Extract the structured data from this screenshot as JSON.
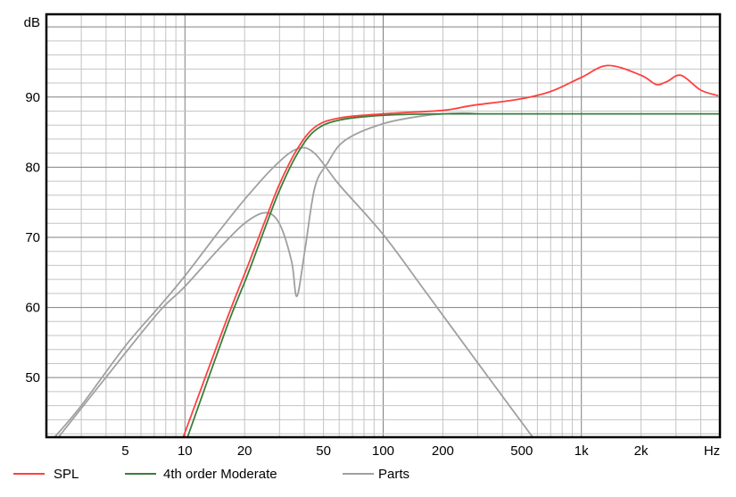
{
  "chart_data": {
    "type": "line",
    "xscale": "log",
    "xlim": [
      2,
      5000
    ],
    "ylim": [
      41.5,
      101.8
    ],
    "xlabel": "Hz",
    "ylabel": "dB",
    "grid": true,
    "legend_placement": "bottom",
    "x_tick_values": [
      5,
      10,
      20,
      50,
      100,
      200,
      500,
      1000,
      2000
    ],
    "x_tick_labels": [
      "5",
      "10",
      "20",
      "50",
      "100",
      "200",
      "500",
      "1k",
      "2k"
    ],
    "y_ticks": [
      50,
      60,
      70,
      80,
      90
    ],
    "series": [
      {
        "name": "Parts",
        "color": "#a0a0a0",
        "points": [
          [
            2.2,
            41.5
          ],
          [
            3,
            46
          ],
          [
            5,
            54.5
          ],
          [
            7.57,
            60.4
          ],
          [
            10,
            64.5
          ],
          [
            15,
            71
          ],
          [
            20,
            75.4
          ],
          [
            28,
            80
          ],
          [
            36.7,
            82.6
          ],
          [
            45,
            82
          ],
          [
            60,
            77.5
          ],
          [
            100,
            70.4
          ],
          [
            167,
            61.9
          ],
          [
            300,
            52.1
          ],
          [
            600,
            40.6
          ]
        ]
      },
      {
        "name": "Parts",
        "color": "#a0a0a0",
        "points": [
          [
            2.3,
            41.5
          ],
          [
            5,
            53.5
          ],
          [
            7.57,
            59.7
          ],
          [
            10,
            63
          ],
          [
            15,
            68.5
          ],
          [
            20,
            72
          ],
          [
            25.4,
            73.5
          ],
          [
            29.9,
            72
          ],
          [
            34.5,
            66.6
          ],
          [
            36.7,
            61.6
          ],
          [
            40.3,
            68.2
          ],
          [
            45.2,
            77.1
          ],
          [
            52.2,
            80.5
          ],
          [
            64,
            83.8
          ],
          [
            100,
            86.2
          ],
          [
            167,
            87.4
          ],
          [
            250,
            87.7
          ],
          [
            300,
            87.6
          ]
        ]
      },
      {
        "name": "4th order Moderate",
        "color": "#3a7d3a",
        "points": [
          [
            10.3,
            41.5
          ],
          [
            16.3,
            57.3
          ],
          [
            20.6,
            64.5
          ],
          [
            25.4,
            71.4
          ],
          [
            29.9,
            76.6
          ],
          [
            36.7,
            81.8
          ],
          [
            45.2,
            85.2
          ],
          [
            59.7,
            86.7
          ],
          [
            100,
            87.4
          ],
          [
            200,
            87.6
          ],
          [
            300,
            87.6
          ],
          [
            5000,
            87.6
          ]
        ]
      },
      {
        "name": "SPL",
        "color": "#ff4040",
        "points": [
          [
            9.8,
            41.5
          ],
          [
            16.3,
            58.4
          ],
          [
            20.6,
            65.7
          ],
          [
            25.4,
            72.4
          ],
          [
            29.9,
            77.5
          ],
          [
            36.7,
            82.5
          ],
          [
            45.2,
            85.7
          ],
          [
            59.7,
            87
          ],
          [
            100,
            87.6
          ],
          [
            200,
            88.1
          ],
          [
            281,
            88.8
          ],
          [
            486,
            89.7
          ],
          [
            700,
            90.8
          ],
          [
            1000,
            92.8
          ],
          [
            1360,
            94.5
          ],
          [
            2000,
            93.1
          ],
          [
            2380,
            91.8
          ],
          [
            2700,
            92.2
          ],
          [
            3180,
            93.1
          ],
          [
            3990,
            91.0
          ],
          [
            4900,
            90.2
          ]
        ]
      }
    ],
    "legend": [
      {
        "label": "SPL",
        "color": "#ff4040"
      },
      {
        "label": "4th order Moderate",
        "color": "#3a7d3a"
      },
      {
        "label": "Parts",
        "color": "#a0a0a0"
      }
    ]
  }
}
